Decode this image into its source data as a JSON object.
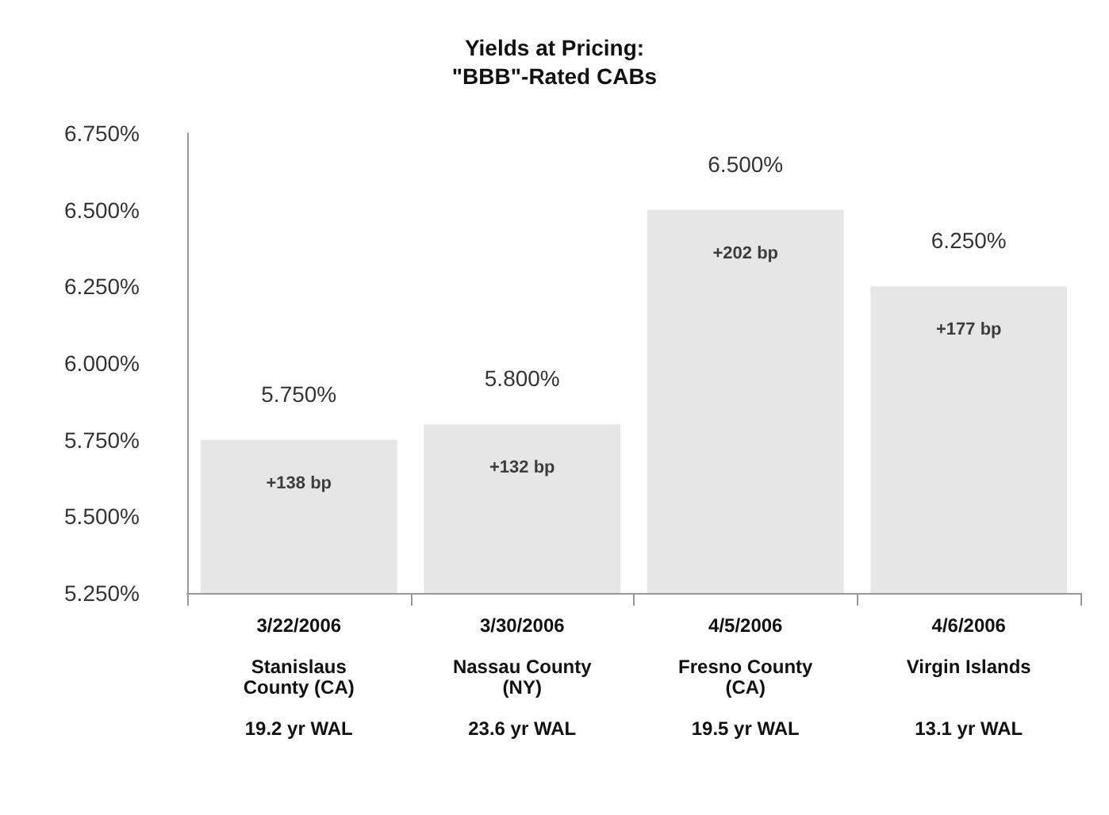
{
  "chart_data": {
    "type": "bar",
    "title": "Yields at Pricing:\n\"BBB\"-Rated CABs",
    "categories": [
      "3/22/2006\n\nStanislaus\nCounty (CA)\n\n19.2 yr WAL",
      "3/30/2006\n\nNassau County\n(NY)\n\n23.6 yr WAL",
      "4/5/2006\n\nFresno County\n(CA)\n\n19.5 yr WAL",
      "4/6/2006\n\nVirgin Islands\n\n\n13.1 yr WAL"
    ],
    "values": [
      5.75,
      5.8,
      6.5,
      6.25
    ],
    "value_labels": [
      "5.750%",
      "5.800%",
      "6.500%",
      "6.250%"
    ],
    "color": "#e6e6e6",
    "ylim": [
      5.25,
      6.75
    ],
    "yticks": [
      {
        "value": 5.25,
        "label": "5.250%"
      },
      {
        "value": 5.5,
        "label": "5.500%"
      },
      {
        "value": 5.75,
        "label": "5.750%"
      },
      {
        "value": 6.0,
        "label": "6.000%"
      },
      {
        "value": 6.25,
        "label": "6.250%"
      },
      {
        "value": 6.5,
        "label": "6.500%"
      },
      {
        "value": 6.75,
        "label": "6.750%"
      }
    ],
    "annotations": [
      "+138 bp",
      "+132 bp",
      "+202 bp",
      "+177 bp"
    ],
    "grid": false
  }
}
